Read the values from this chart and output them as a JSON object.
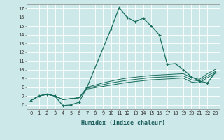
{
  "xlabel": "Humidex (Indice chaleur)",
  "bg_color": "#cce8e8",
  "line_color": "#1a6e5e",
  "xlim": [
    -0.5,
    23.5
  ],
  "ylim": [
    5.5,
    17.5
  ],
  "xticks": [
    0,
    1,
    2,
    3,
    4,
    5,
    6,
    7,
    8,
    9,
    10,
    11,
    12,
    13,
    14,
    15,
    16,
    17,
    18,
    19,
    20,
    21,
    22,
    23
  ],
  "yticks": [
    6,
    7,
    8,
    9,
    10,
    11,
    12,
    13,
    14,
    15,
    16,
    17
  ],
  "series1_x": [
    0,
    1,
    2,
    3,
    4,
    5,
    6,
    7,
    10,
    11,
    12,
    13,
    14,
    15,
    16,
    17,
    18,
    19,
    20,
    21,
    22,
    23
  ],
  "series1_y": [
    6.5,
    7.0,
    7.2,
    7.0,
    5.9,
    6.0,
    6.3,
    8.0,
    14.7,
    17.1,
    16.0,
    15.5,
    15.9,
    15.0,
    14.0,
    10.6,
    10.7,
    10.0,
    9.2,
    8.7,
    8.5,
    9.7
  ],
  "series2_x": [
    0,
    1,
    2,
    3,
    4,
    5,
    6,
    7,
    8,
    9,
    10,
    11,
    12,
    13,
    14,
    15,
    16,
    17,
    18,
    19,
    20,
    21,
    22,
    23
  ],
  "series2_y": [
    6.5,
    7.0,
    7.2,
    7.0,
    6.6,
    6.7,
    6.8,
    7.8,
    7.95,
    8.1,
    8.25,
    8.4,
    8.55,
    8.65,
    8.75,
    8.85,
    8.9,
    8.95,
    9.0,
    9.05,
    8.6,
    8.5,
    9.1,
    9.6
  ],
  "series3_x": [
    0,
    1,
    2,
    3,
    4,
    5,
    6,
    7,
    8,
    9,
    10,
    11,
    12,
    13,
    14,
    15,
    16,
    17,
    18,
    19,
    20,
    21,
    22,
    23
  ],
  "series3_y": [
    6.5,
    7.0,
    7.2,
    7.0,
    6.6,
    6.7,
    6.8,
    7.9,
    8.1,
    8.3,
    8.5,
    8.65,
    8.8,
    8.9,
    9.0,
    9.1,
    9.15,
    9.2,
    9.25,
    9.3,
    8.85,
    8.7,
    9.3,
    9.8
  ],
  "series4_x": [
    0,
    1,
    2,
    3,
    4,
    5,
    6,
    7,
    8,
    9,
    10,
    11,
    12,
    13,
    14,
    15,
    16,
    17,
    18,
    19,
    20,
    21,
    22,
    23
  ],
  "series4_y": [
    6.5,
    7.0,
    7.2,
    7.0,
    6.6,
    6.7,
    6.8,
    8.0,
    8.25,
    8.5,
    8.7,
    8.9,
    9.05,
    9.15,
    9.25,
    9.35,
    9.4,
    9.45,
    9.5,
    9.55,
    9.1,
    8.9,
    9.55,
    10.05
  ]
}
